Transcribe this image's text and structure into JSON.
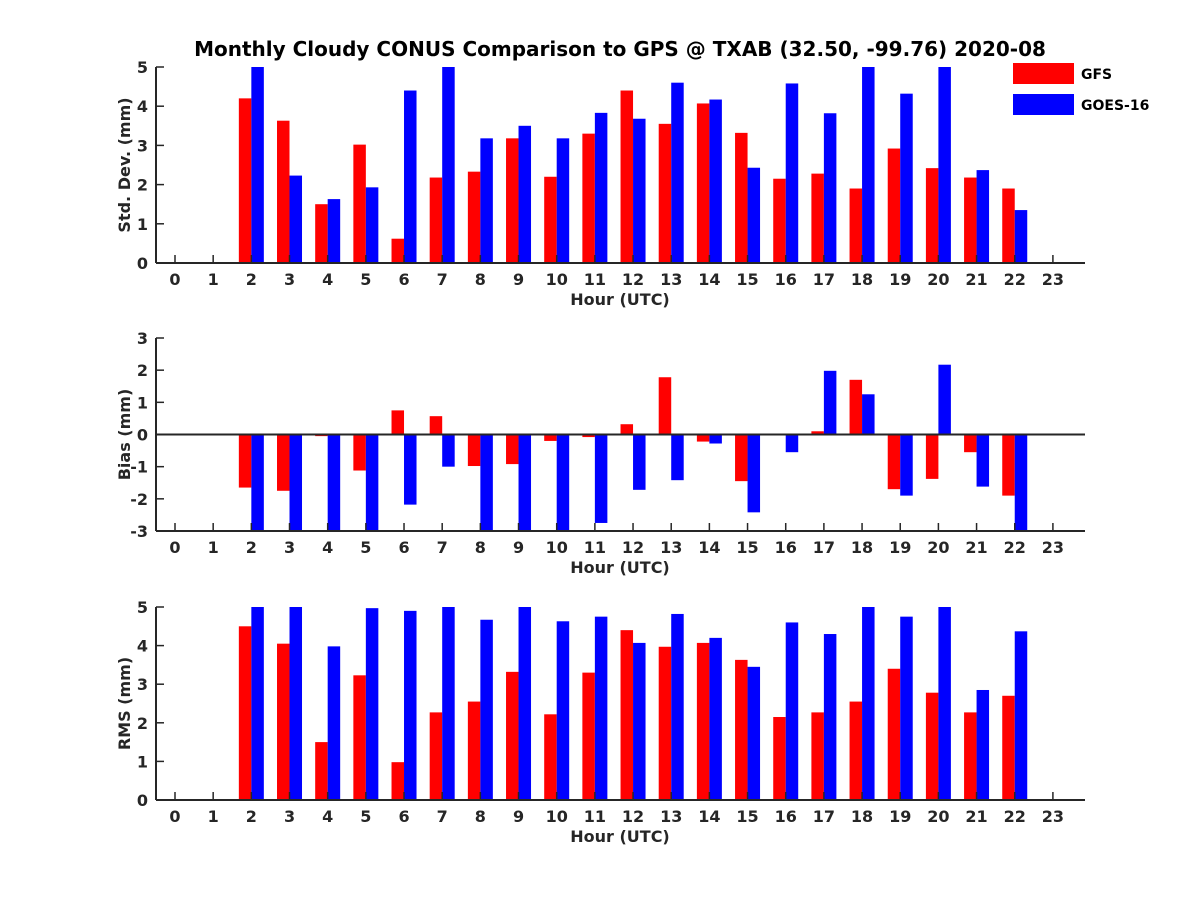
{
  "chart_data": {
    "type": "bar",
    "title": "Monthly Cloudy CONUS Comparison to GPS @ TXAB (32.50, -99.76) 2020-08",
    "legend": {
      "placement": "top-right",
      "entries": [
        {
          "name": "GFS",
          "color": "#ff0000"
        },
        {
          "name": "GOES-16",
          "color": "#0000ff"
        }
      ]
    },
    "categories": [
      "0",
      "1",
      "2",
      "3",
      "4",
      "5",
      "6",
      "7",
      "8",
      "9",
      "10",
      "11",
      "12",
      "13",
      "14",
      "15",
      "16",
      "17",
      "18",
      "19",
      "20",
      "21",
      "22",
      "23"
    ],
    "panels": [
      {
        "ylabel": "Std. Dev. (mm)",
        "xlabel": "Hour (UTC)",
        "ylim": [
          0,
          5
        ],
        "yticks": [
          "0",
          "1",
          "2",
          "3",
          "4",
          "5"
        ],
        "zero_line": false,
        "series": [
          {
            "name": "GFS",
            "color": "#ff0000",
            "values": [
              null,
              null,
              4.2,
              3.63,
              1.5,
              3.02,
              0.62,
              2.18,
              2.33,
              3.18,
              2.2,
              3.3,
              4.4,
              3.55,
              4.07,
              3.32,
              2.15,
              2.28,
              1.9,
              2.92,
              2.42,
              2.18,
              1.9,
              null
            ]
          },
          {
            "name": "GOES-16",
            "color": "#0000ff",
            "values": [
              null,
              null,
              5.0,
              2.23,
              1.63,
              1.93,
              4.4,
              5.0,
              3.18,
              3.5,
              3.18,
              3.83,
              3.68,
              4.6,
              4.17,
              2.43,
              4.58,
              3.82,
              5.0,
              4.32,
              5.0,
              2.37,
              1.35,
              null
            ]
          }
        ]
      },
      {
        "ylabel": "Bias (mm)",
        "xlabel": "Hour (UTC)",
        "ylim": [
          -3,
          3
        ],
        "yticks": [
          "-3",
          "-2",
          "-1",
          "0",
          "1",
          "2",
          "3"
        ],
        "zero_line": true,
        "series": [
          {
            "name": "GFS",
            "color": "#ff0000",
            "values": [
              null,
              null,
              -1.65,
              -1.75,
              -0.05,
              -1.12,
              0.75,
              0.57,
              -0.98,
              -0.92,
              -0.2,
              -0.08,
              0.32,
              1.78,
              -0.22,
              -1.45,
              0,
              0.1,
              1.7,
              -1.7,
              -1.38,
              -0.55,
              -1.9,
              null
            ]
          },
          {
            "name": "GOES-16",
            "color": "#0000ff",
            "values": [
              null,
              null,
              -3.0,
              -3.0,
              -3.0,
              -3.0,
              -2.18,
              -1.0,
              -3.0,
              -3.0,
              -3.0,
              -2.75,
              -1.72,
              -1.42,
              -0.28,
              -2.42,
              -0.55,
              1.98,
              1.25,
              -1.9,
              2.17,
              -1.62,
              -3.0,
              null
            ]
          }
        ]
      },
      {
        "ylabel": "RMS (mm)",
        "xlabel": "Hour (UTC)",
        "ylim": [
          0,
          5
        ],
        "yticks": [
          "0",
          "1",
          "2",
          "3",
          "4",
          "5"
        ],
        "zero_line": false,
        "series": [
          {
            "name": "GFS",
            "color": "#ff0000",
            "values": [
              null,
              null,
              4.5,
              4.05,
              1.5,
              3.23,
              0.98,
              2.27,
              2.55,
              3.32,
              2.22,
              3.3,
              4.4,
              3.97,
              4.07,
              3.63,
              2.15,
              2.27,
              2.55,
              3.4,
              2.78,
              2.27,
              2.7,
              null
            ]
          },
          {
            "name": "GOES-16",
            "color": "#0000ff",
            "values": [
              null,
              null,
              5.0,
              5.0,
              3.98,
              4.97,
              4.9,
              5.0,
              4.67,
              5.0,
              4.63,
              4.75,
              4.07,
              4.82,
              4.2,
              3.45,
              4.6,
              4.3,
              5.0,
              4.75,
              5.0,
              2.85,
              4.37,
              null
            ]
          }
        ]
      }
    ]
  }
}
